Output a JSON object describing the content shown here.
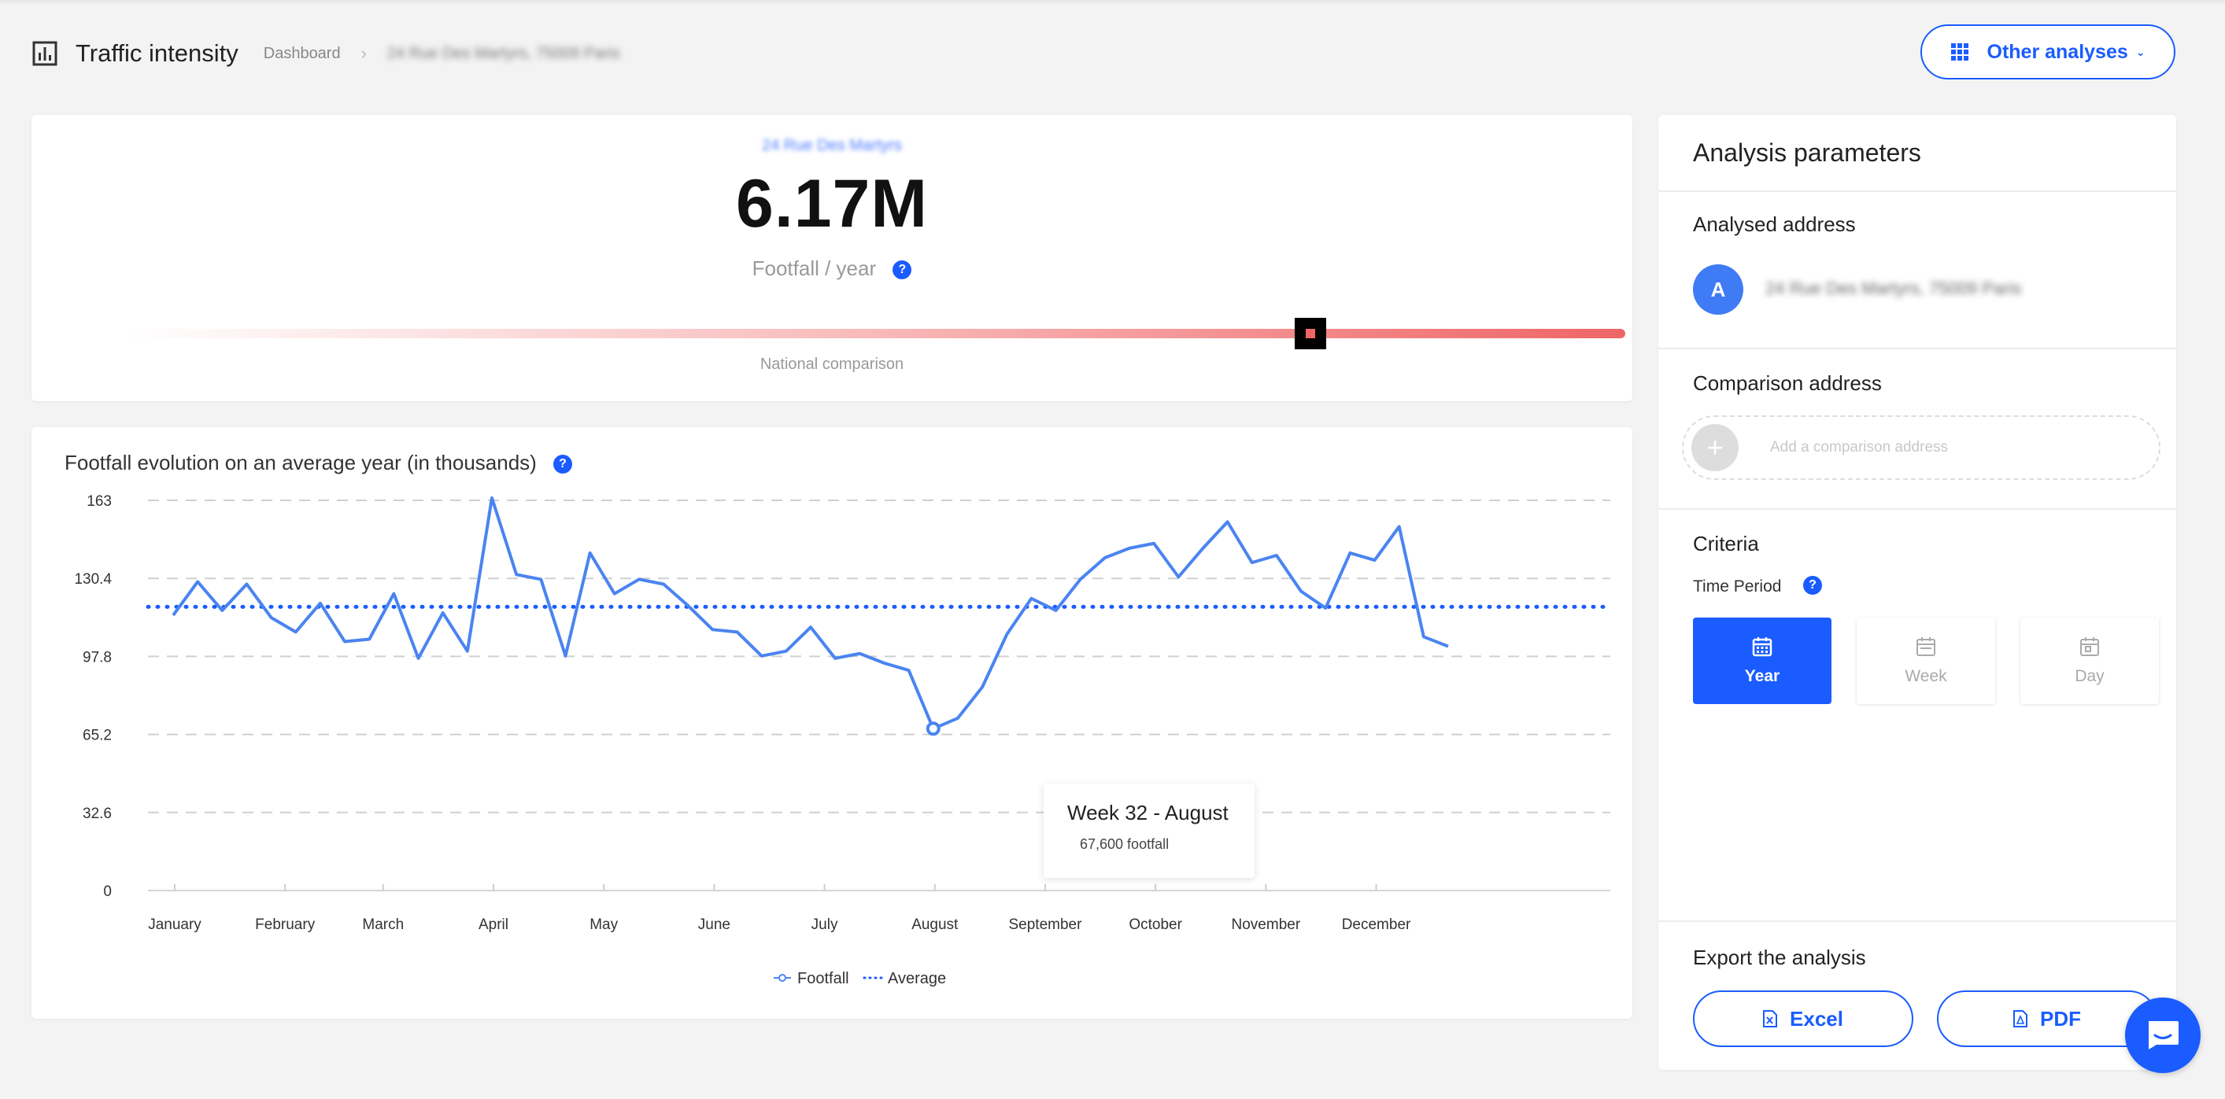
{
  "header": {
    "title": "Traffic intensity",
    "breadcrumb": [
      "Dashboard",
      "24 Rue Des Martyrs, 75009 Paris"
    ],
    "other_analyses": "Other analyses",
    "icons": {
      "page": "bar-chart-icon",
      "grid": "grid-icon",
      "chevron": "chevron-down-icon"
    }
  },
  "kpi": {
    "address": "24 Rue Des Martyrs",
    "value": "6.17M",
    "label": "Footfall / year",
    "help": "?",
    "gauge_label": "National comparison",
    "gauge_level": 0.79,
    "colors": {
      "gauge": "#ef6567"
    }
  },
  "panel": {
    "title": "Analysis parameters",
    "analysed_title": "Analysed address",
    "avatar": "A",
    "analysed_address": "24 Rue Des Martyrs, 75009 Paris",
    "comparison_title": "Comparison address",
    "comparison_placeholder": "Add a comparison address",
    "plus": "+",
    "criteria_title": "Criteria",
    "time_period_label": "Time Period",
    "help": "?",
    "periods": [
      {
        "label": "Year",
        "active": true
      },
      {
        "label": "Week",
        "active": false
      },
      {
        "label": "Day",
        "active": false
      }
    ],
    "export_title": "Export the analysis",
    "export_excel": "Excel",
    "export_pdf": "PDF"
  },
  "chart_data": {
    "type": "line",
    "title": "Footfall evolution on an average year (in thousands)",
    "help": "?",
    "xlabel": "",
    "ylabel": "",
    "ylim": [
      0,
      163
    ],
    "yticks": [
      "163",
      "130.4",
      "97.8",
      "65.2",
      "32.6",
      "0"
    ],
    "ytick_values": [
      163,
      130.4,
      97.8,
      65.2,
      32.6,
      0
    ],
    "month_labels": [
      "January",
      "February",
      "March",
      "April",
      "May",
      "June",
      "July",
      "August",
      "September",
      "October",
      "November",
      "December"
    ],
    "month_weeks": [
      1,
      5.5,
      9.5,
      14,
      18.5,
      23,
      27.5,
      32,
      36.5,
      41,
      45.5,
      50
    ],
    "grid": "horizontal-dashed",
    "legend_position": "bottom-center",
    "series": [
      {
        "name": "Footfall",
        "style": "solid",
        "color": "#4a84f0",
        "x": [
          1,
          2,
          3,
          4,
          5,
          6,
          7,
          8,
          9,
          10,
          11,
          12,
          13,
          14,
          15,
          16,
          17,
          18,
          19,
          20,
          21,
          22,
          23,
          24,
          25,
          26,
          27,
          28,
          29,
          30,
          31,
          32,
          33,
          34,
          35,
          36,
          37,
          38,
          39,
          40,
          41,
          42,
          43,
          44,
          45,
          46,
          47,
          48,
          49,
          50,
          51,
          52,
          53
        ],
        "values": [
          115,
          129,
          117,
          128,
          114,
          108,
          120,
          104,
          105,
          124,
          97,
          116,
          100,
          164,
          132,
          130,
          98,
          141,
          124,
          130,
          128,
          119,
          109,
          108,
          98,
          100,
          110,
          97,
          99,
          95,
          92,
          67.6,
          72,
          85,
          107,
          122,
          117,
          130,
          139,
          143,
          145,
          131,
          143,
          154,
          137,
          140,
          125,
          118,
          141,
          138,
          152,
          106,
          102
        ]
      },
      {
        "name": "Average",
        "style": "dotted",
        "color": "#1a5cff",
        "values": [
          118.5
        ]
      }
    ],
    "highlight": {
      "week": 32,
      "value": 67.6,
      "tooltip_title": "Week 32 - August",
      "tooltip_value": "67,600 footfall"
    }
  }
}
